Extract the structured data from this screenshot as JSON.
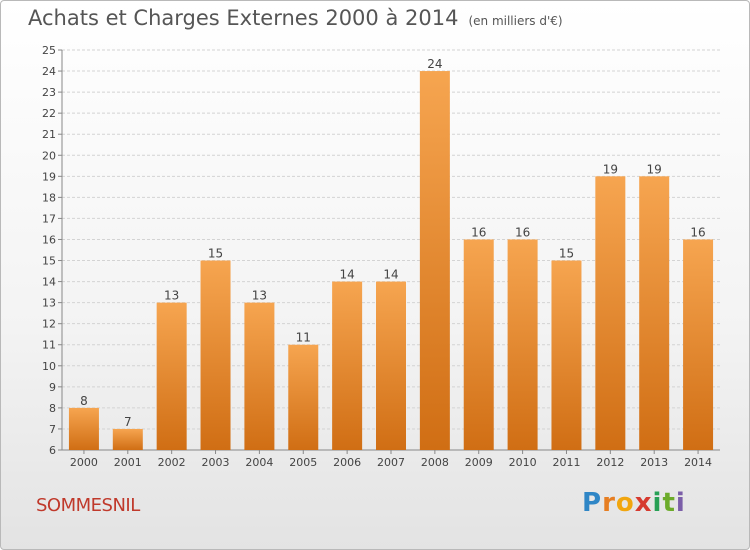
{
  "header": {
    "title": "Achats et Charges Externes 2000 à 2014",
    "unit": "(en milliers d'€)"
  },
  "footer": {
    "commune": "SOMMESNIL",
    "logo_letters": [
      "P",
      "r",
      "o",
      "x",
      "i",
      "t",
      "i"
    ],
    "logo_colors": [
      "#2f86c6",
      "#e67e22",
      "#f1a60f",
      "#d63a2f",
      "#27a055",
      "#6cab2a",
      "#7b5ea8"
    ]
  },
  "colors": {
    "bar_top": "#f6a550",
    "bar_bottom": "#d06e14",
    "grid": "#d3d3d3",
    "text": "#444444"
  },
  "chart_data": {
    "type": "bar",
    "categories": [
      "2000",
      "2001",
      "2002",
      "2003",
      "2004",
      "2005",
      "2006",
      "2007",
      "2008",
      "2009",
      "2010",
      "2011",
      "2012",
      "2013",
      "2014"
    ],
    "values": [
      8,
      7,
      13,
      15,
      13,
      11,
      14,
      14,
      24,
      16,
      16,
      15,
      19,
      19,
      16
    ],
    "title": "Achats et Charges Externes 2000 à 2014",
    "ylim": [
      6,
      25
    ],
    "yticks": [
      6,
      7,
      8,
      9,
      10,
      11,
      12,
      13,
      14,
      15,
      16,
      17,
      18,
      19,
      20,
      21,
      22,
      23,
      24,
      25
    ],
    "grid": true
  }
}
